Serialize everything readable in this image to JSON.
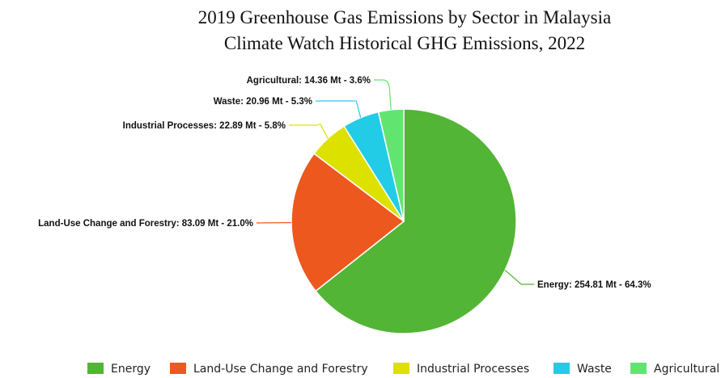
{
  "chart_data": {
    "type": "pie",
    "title": "2019 Greenhouse Gas Emissions by Sector in Malaysia",
    "subtitle": "Climate Watch Historical GHG Emissions, 2022",
    "unit": "Mt",
    "slices": [
      {
        "name": "Energy",
        "value": 254.81,
        "percent": 64.3,
        "color": "#52b535",
        "label": "Energy: 254.81 Mt - 64.3%"
      },
      {
        "name": "Land-Use Change and Forestry",
        "value": 83.09,
        "percent": 21.0,
        "color": "#ec581e",
        "label": "Land-Use Change and Forestry: 83.09 Mt - 21.0%"
      },
      {
        "name": "Industrial Processes",
        "value": 22.89,
        "percent": 5.8,
        "color": "#dde100",
        "label": "Industrial Processes: 22.89 Mt - 5.8%"
      },
      {
        "name": "Waste",
        "value": 20.96,
        "percent": 5.3,
        "color": "#22cce6",
        "label": "Waste: 20.96 Mt - 5.3%"
      },
      {
        "name": "Agricultural",
        "value": 14.36,
        "percent": 3.6,
        "color": "#62e570",
        "label": "Agricultural: 14.36 Mt - 3.6%"
      }
    ],
    "legend": {
      "placement": "bottom",
      "entries": [
        "Energy",
        "Land-Use Change and Forestry",
        "Industrial Processes",
        "Waste",
        "Agricultural"
      ]
    }
  }
}
